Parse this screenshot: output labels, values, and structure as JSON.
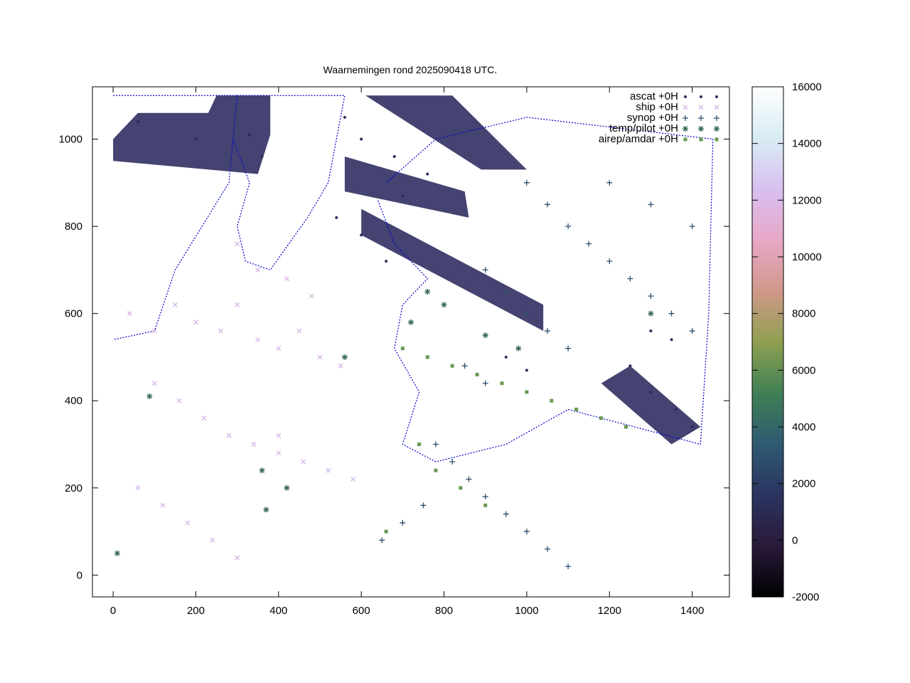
{
  "chart_data": {
    "type": "scatter",
    "title": "Waarnemingen rond 2025090418 UTC.",
    "xlabel": "",
    "ylabel": "",
    "xlim": [
      -50,
      1490
    ],
    "ylim": [
      -50,
      1120
    ],
    "xticks": [
      0,
      200,
      400,
      600,
      800,
      1000,
      1200,
      1400
    ],
    "xtick_labels": [
      "0",
      "200",
      "400",
      "600",
      "800",
      "1000",
      "1200",
      "1400"
    ],
    "yticks": [
      0,
      200,
      400,
      600,
      800,
      1000
    ],
    "ytick_labels": [
      "0",
      "200",
      "400",
      "600",
      "800",
      "1000"
    ],
    "grid": false,
    "legend_position": "top-right",
    "series": [
      {
        "name": "ascat +0H",
        "marker": "dot",
        "color": "#2b2d5a",
        "points": [
          [
            60,
            1040
          ],
          [
            200,
            1000
          ],
          [
            330,
            1010
          ],
          [
            360,
            960
          ],
          [
            560,
            1050
          ],
          [
            600,
            1000
          ],
          [
            680,
            960
          ],
          [
            540,
            820
          ],
          [
            600,
            780
          ],
          [
            660,
            720
          ],
          [
            700,
            870
          ],
          [
            760,
            920
          ],
          [
            1300,
            560
          ],
          [
            1350,
            540
          ],
          [
            1300,
            420
          ],
          [
            1360,
            380
          ],
          [
            1400,
            340
          ],
          [
            1250,
            480
          ],
          [
            950,
            500
          ],
          [
            1000,
            470
          ]
        ]
      },
      {
        "name": "ship +0H",
        "marker": "x",
        "color": "#d8b8e8",
        "points": [
          [
            40,
            600
          ],
          [
            100,
            560
          ],
          [
            150,
            620
          ],
          [
            200,
            580
          ],
          [
            260,
            560
          ],
          [
            300,
            620
          ],
          [
            350,
            540
          ],
          [
            400,
            520
          ],
          [
            450,
            560
          ],
          [
            500,
            500
          ],
          [
            550,
            480
          ],
          [
            100,
            440
          ],
          [
            160,
            400
          ],
          [
            220,
            360
          ],
          [
            280,
            320
          ],
          [
            340,
            300
          ],
          [
            400,
            280
          ],
          [
            460,
            260
          ],
          [
            520,
            240
          ],
          [
            580,
            220
          ],
          [
            60,
            200
          ],
          [
            120,
            160
          ],
          [
            180,
            120
          ],
          [
            240,
            80
          ],
          [
            300,
            40
          ],
          [
            400,
            320
          ],
          [
            350,
            700
          ],
          [
            420,
            680
          ],
          [
            480,
            640
          ],
          [
            300,
            760
          ]
        ]
      },
      {
        "name": "synop +0H",
        "marker": "plus",
        "color": "#2d4f6e",
        "points": [
          [
            1000,
            900
          ],
          [
            1050,
            850
          ],
          [
            1100,
            800
          ],
          [
            1150,
            760
          ],
          [
            1200,
            720
          ],
          [
            1250,
            680
          ],
          [
            1300,
            640
          ],
          [
            1350,
            600
          ],
          [
            1400,
            560
          ],
          [
            900,
            700
          ],
          [
            950,
            650
          ],
          [
            1000,
            600
          ],
          [
            1050,
            560
          ],
          [
            1100,
            520
          ],
          [
            850,
            480
          ],
          [
            900,
            440
          ],
          [
            780,
            300
          ],
          [
            820,
            260
          ],
          [
            860,
            220
          ],
          [
            900,
            180
          ],
          [
            950,
            140
          ],
          [
            1000,
            100
          ],
          [
            1050,
            60
          ],
          [
            1100,
            20
          ],
          [
            750,
            160
          ],
          [
            700,
            120
          ],
          [
            650,
            80
          ],
          [
            1200,
            900
          ],
          [
            1300,
            850
          ],
          [
            1400,
            800
          ]
        ]
      },
      {
        "name": "temp/pilot +0H",
        "marker": "star",
        "color": "#3a6a58",
        "points": [
          [
            760,
            650
          ],
          [
            800,
            620
          ],
          [
            720,
            580
          ],
          [
            900,
            550
          ],
          [
            980,
            520
          ],
          [
            1300,
            600
          ],
          [
            88,
            410
          ],
          [
            370,
            150
          ],
          [
            360,
            240
          ],
          [
            10,
            50
          ],
          [
            420,
            200
          ],
          [
            560,
            500
          ]
        ]
      },
      {
        "name": "airep/amdar +0H",
        "marker": "square",
        "color": "#6a9a50",
        "points": [
          [
            700,
            520
          ],
          [
            760,
            500
          ],
          [
            820,
            480
          ],
          [
            880,
            460
          ],
          [
            940,
            440
          ],
          [
            1000,
            420
          ],
          [
            1060,
            400
          ],
          [
            1120,
            380
          ],
          [
            1180,
            360
          ],
          [
            1240,
            340
          ],
          [
            740,
            300
          ],
          [
            780,
            240
          ],
          [
            840,
            200
          ],
          [
            900,
            160
          ],
          [
            660,
            100
          ]
        ]
      }
    ],
    "colorbar": {
      "min": -2000,
      "max": 16000,
      "ticks": [
        -2000,
        0,
        2000,
        4000,
        6000,
        8000,
        10000,
        12000,
        14000,
        16000
      ],
      "tick_labels": [
        "-2000",
        "0",
        "2000",
        "4000",
        "6000",
        "8000",
        "10000",
        "12000",
        "14000",
        "16000"
      ],
      "colors": [
        "#000000",
        "#2a1a3a",
        "#2b3460",
        "#2f5a72",
        "#3f8055",
        "#8fa050",
        "#d0988a",
        "#e8a8c8",
        "#d8c0f0",
        "#d8ecf4",
        "#ffffff"
      ]
    },
    "coastline_color": "#0000cc",
    "swath_color": "#3b3969"
  }
}
